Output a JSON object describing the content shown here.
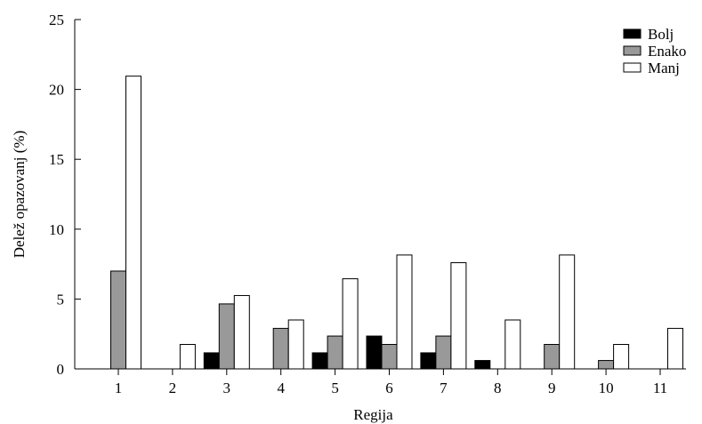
{
  "chart_data": {
    "type": "bar",
    "title": "",
    "xlabel": "Regija",
    "ylabel": "Delež opazovanj (%)",
    "categories": [
      "1",
      "2",
      "3",
      "4",
      "5",
      "6",
      "7",
      "8",
      "9",
      "10",
      "11"
    ],
    "series": [
      {
        "name": "Bolj",
        "color": "#000000",
        "values": [
          0,
          0,
          1.15,
          0,
          1.15,
          2.35,
          1.15,
          0.6,
          0,
          0,
          0
        ]
      },
      {
        "name": "Enako",
        "color": "#999999",
        "values": [
          7.0,
          0,
          4.65,
          2.9,
          2.35,
          1.75,
          2.35,
          0,
          1.75,
          0.6,
          0
        ]
      },
      {
        "name": "Manj",
        "color": "#ffffff",
        "values": [
          20.95,
          1.75,
          5.25,
          3.5,
          6.45,
          8.15,
          7.6,
          3.5,
          8.15,
          1.75,
          2.9
        ]
      }
    ],
    "ylim": [
      0,
      25
    ],
    "yticks": [
      0,
      5,
      10,
      15,
      20,
      25
    ],
    "grid": false,
    "legend_position": "top-right"
  }
}
